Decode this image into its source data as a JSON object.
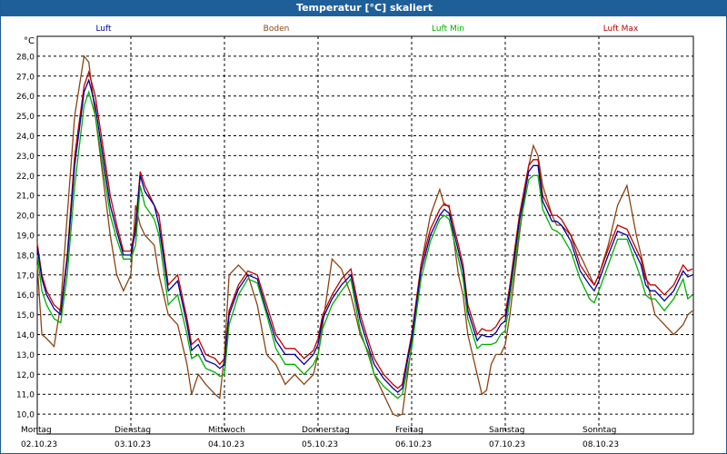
{
  "window": {
    "title": "Temperatur [°C] skaliert"
  },
  "chart_data": {
    "type": "line",
    "title": "Temperatur [°C] skaliert",
    "ylabel": "°C",
    "ylim": [
      9.0,
      29.0
    ],
    "yticks": [
      "10,0",
      "11,0",
      "12,0",
      "13,0",
      "14,0",
      "15,0",
      "16,0",
      "17,0",
      "18,0",
      "19,0",
      "20,0",
      "21,0",
      "22,0",
      "23,0",
      "24,0",
      "25,0",
      "26,0",
      "27,0",
      "28,0"
    ],
    "xlim": [
      0,
      7
    ],
    "days": [
      {
        "name": "Montag",
        "date": "02.10.23"
      },
      {
        "name": "Dienstag",
        "date": "03.10.23"
      },
      {
        "name": "Mittwoch",
        "date": "04.10.23"
      },
      {
        "name": "Donnerstag",
        "date": "05.10.23"
      },
      {
        "name": "Freitag",
        "date": "06.10.23"
      },
      {
        "name": "Samstag",
        "date": "07.10.23"
      },
      {
        "name": "Sonntag",
        "date": "08.10.23"
      }
    ],
    "grid": true,
    "series": [
      {
        "name": "Boden",
        "color": "#8B4513",
        "x": [
          0,
          0.05,
          0.1,
          0.18,
          0.25,
          0.32,
          0.4,
          0.5,
          0.55,
          0.62,
          0.7,
          0.78,
          0.85,
          0.92,
          1.0,
          1.05,
          1.1,
          1.15,
          1.25,
          1.3,
          1.4,
          1.5,
          1.6,
          1.65,
          1.72,
          1.8,
          1.9,
          1.95,
          2.0,
          2.05,
          2.15,
          2.25,
          2.35,
          2.45,
          2.55,
          2.65,
          2.75,
          2.85,
          2.95,
          3.0,
          3.05,
          3.15,
          3.25,
          3.35,
          3.45,
          3.55,
          3.6,
          3.7,
          3.8,
          3.85,
          3.9,
          4.0,
          4.1,
          4.2,
          4.3,
          4.35,
          4.4,
          4.5,
          4.55,
          4.6,
          4.7,
          4.75,
          4.8,
          4.85,
          4.9,
          4.95,
          5.0,
          5.05,
          5.15,
          5.25,
          5.3,
          5.35,
          5.4,
          5.5,
          5.55,
          5.6,
          5.7,
          5.8,
          5.9,
          5.95,
          6.0,
          6.1,
          6.2,
          6.3,
          6.4,
          6.45,
          6.5,
          6.55,
          6.6,
          6.7,
          6.8,
          6.9,
          6.95,
          7.0
        ],
        "y": [
          17.5,
          14.0,
          13.8,
          13.4,
          15.5,
          20.0,
          25.0,
          28.0,
          27.7,
          25.0,
          22.0,
          19.0,
          17.0,
          16.2,
          17.0,
          20.5,
          19.5,
          19.0,
          18.5,
          17.0,
          15.0,
          14.5,
          12.5,
          11.0,
          12.0,
          11.5,
          11.0,
          10.8,
          13.0,
          17.0,
          17.5,
          17.0,
          15.5,
          13.0,
          12.5,
          11.5,
          12.0,
          11.5,
          12.0,
          13.0,
          14.5,
          17.8,
          17.3,
          16.0,
          14.0,
          13.0,
          12.0,
          11.0,
          10.0,
          9.9,
          10.0,
          13.5,
          17.5,
          20.0,
          21.3,
          20.5,
          20.5,
          17.0,
          16.0,
          14.0,
          12.0,
          11.0,
          11.2,
          12.5,
          13.0,
          13.0,
          13.5,
          15.0,
          19.0,
          22.5,
          23.5,
          23.0,
          21.5,
          20.0,
          19.5,
          19.5,
          19.0,
          18.0,
          17.0,
          16.5,
          17.0,
          18.5,
          20.5,
          21.5,
          19.0,
          18.0,
          17.0,
          16.0,
          15.0,
          14.5,
          14.0,
          14.5,
          15.0,
          15.2
        ]
      },
      {
        "name": "Luft Max",
        "color": "#c00000",
        "x": [
          0,
          0.05,
          0.1,
          0.18,
          0.25,
          0.32,
          0.4,
          0.5,
          0.55,
          0.62,
          0.7,
          0.78,
          0.85,
          0.92,
          1.0,
          1.05,
          1.1,
          1.15,
          1.25,
          1.3,
          1.4,
          1.5,
          1.6,
          1.65,
          1.72,
          1.8,
          1.9,
          1.95,
          2.0,
          2.05,
          2.15,
          2.25,
          2.35,
          2.45,
          2.55,
          2.65,
          2.75,
          2.85,
          2.95,
          3.0,
          3.05,
          3.15,
          3.25,
          3.35,
          3.45,
          3.55,
          3.6,
          3.7,
          3.8,
          3.85,
          3.9,
          4.0,
          4.1,
          4.2,
          4.3,
          4.35,
          4.4,
          4.5,
          4.55,
          4.6,
          4.7,
          4.75,
          4.8,
          4.85,
          4.9,
          4.95,
          5.0,
          5.05,
          5.15,
          5.25,
          5.3,
          5.35,
          5.4,
          5.5,
          5.55,
          5.6,
          5.7,
          5.8,
          5.9,
          5.95,
          6.0,
          6.1,
          6.2,
          6.3,
          6.4,
          6.45,
          6.5,
          6.55,
          6.6,
          6.7,
          6.8,
          6.9,
          6.95,
          7.0
        ],
        "y": [
          18.6,
          17.0,
          16.2,
          15.5,
          15.2,
          18.0,
          23.0,
          26.5,
          27.2,
          26.0,
          23.5,
          21.0,
          19.5,
          18.2,
          18.2,
          19.5,
          22.2,
          21.5,
          20.5,
          20.0,
          16.5,
          17.0,
          14.8,
          13.5,
          13.8,
          13.0,
          12.8,
          12.5,
          12.8,
          15.2,
          16.5,
          17.2,
          17.0,
          15.5,
          14.0,
          13.3,
          13.3,
          12.8,
          13.2,
          13.8,
          15.0,
          16.0,
          16.8,
          17.3,
          15.0,
          13.5,
          12.8,
          12.0,
          11.5,
          11.3,
          11.5,
          14.0,
          17.5,
          19.3,
          20.3,
          20.6,
          20.4,
          18.5,
          17.5,
          15.5,
          14.0,
          14.3,
          14.2,
          14.2,
          14.4,
          14.8,
          15.0,
          16.5,
          20.0,
          22.5,
          22.8,
          22.8,
          21.0,
          20.0,
          20.0,
          19.8,
          19.0,
          17.5,
          16.8,
          16.5,
          17.0,
          18.3,
          19.5,
          19.3,
          18.3,
          17.8,
          16.8,
          16.5,
          16.5,
          16.0,
          16.5,
          17.5,
          17.2,
          17.3
        ]
      },
      {
        "name": "Luft",
        "color": "#0000a0",
        "x": [
          0,
          0.05,
          0.1,
          0.18,
          0.25,
          0.32,
          0.4,
          0.5,
          0.55,
          0.62,
          0.7,
          0.78,
          0.85,
          0.92,
          1.0,
          1.05,
          1.1,
          1.15,
          1.25,
          1.3,
          1.4,
          1.5,
          1.6,
          1.65,
          1.72,
          1.8,
          1.9,
          1.95,
          2.0,
          2.05,
          2.15,
          2.25,
          2.35,
          2.45,
          2.55,
          2.65,
          2.75,
          2.85,
          2.95,
          3.0,
          3.05,
          3.15,
          3.25,
          3.35,
          3.45,
          3.55,
          3.6,
          3.7,
          3.8,
          3.85,
          3.9,
          4.0,
          4.1,
          4.2,
          4.3,
          4.35,
          4.4,
          4.5,
          4.55,
          4.6,
          4.7,
          4.75,
          4.8,
          4.85,
          4.9,
          4.95,
          5.0,
          5.05,
          5.15,
          5.25,
          5.3,
          5.35,
          5.4,
          5.5,
          5.55,
          5.6,
          5.7,
          5.8,
          5.9,
          5.95,
          6.0,
          6.1,
          6.2,
          6.3,
          6.4,
          6.45,
          6.5,
          6.55,
          6.6,
          6.7,
          6.8,
          6.9,
          6.95,
          7.0
        ],
        "y": [
          18.4,
          16.8,
          16.0,
          15.3,
          15.0,
          17.8,
          22.5,
          26.2,
          26.8,
          25.5,
          23.0,
          20.5,
          19.2,
          18.0,
          18.0,
          19.2,
          22.0,
          21.2,
          20.5,
          19.5,
          16.2,
          16.7,
          14.5,
          13.2,
          13.5,
          12.7,
          12.5,
          12.3,
          12.5,
          15.0,
          16.3,
          17.0,
          16.8,
          15.2,
          13.7,
          13.0,
          13.0,
          12.5,
          13.0,
          13.5,
          14.8,
          15.8,
          16.5,
          17.0,
          14.7,
          13.2,
          12.5,
          11.8,
          11.3,
          11.1,
          11.3,
          13.8,
          17.2,
          19.0,
          20.0,
          20.3,
          20.1,
          18.2,
          17.2,
          15.2,
          13.7,
          14.0,
          13.9,
          13.9,
          14.1,
          14.5,
          14.7,
          16.2,
          19.7,
          22.2,
          22.5,
          22.5,
          20.7,
          19.7,
          19.7,
          19.5,
          18.7,
          17.2,
          16.5,
          16.2,
          16.7,
          18.0,
          19.2,
          19.0,
          18.0,
          17.5,
          16.5,
          16.2,
          16.2,
          15.7,
          16.2,
          17.2,
          16.9,
          17.0
        ]
      },
      {
        "name": "Luft Min",
        "color": "#00b000",
        "x": [
          0,
          0.05,
          0.1,
          0.18,
          0.25,
          0.32,
          0.4,
          0.5,
          0.55,
          0.62,
          0.7,
          0.78,
          0.85,
          0.92,
          1.0,
          1.05,
          1.1,
          1.15,
          1.25,
          1.3,
          1.4,
          1.5,
          1.6,
          1.65,
          1.72,
          1.8,
          1.9,
          1.95,
          2.0,
          2.05,
          2.15,
          2.25,
          2.35,
          2.45,
          2.55,
          2.65,
          2.75,
          2.85,
          2.95,
          3.0,
          3.05,
          3.15,
          3.25,
          3.35,
          3.45,
          3.55,
          3.6,
          3.7,
          3.8,
          3.85,
          3.9,
          4.0,
          4.1,
          4.2,
          4.3,
          4.35,
          4.4,
          4.5,
          4.55,
          4.6,
          4.7,
          4.75,
          4.8,
          4.85,
          4.9,
          4.95,
          5.0,
          5.05,
          5.15,
          5.25,
          5.3,
          5.35,
          5.4,
          5.5,
          5.55,
          5.6,
          5.7,
          5.8,
          5.9,
          5.95,
          6.0,
          6.1,
          6.2,
          6.3,
          6.4,
          6.45,
          6.5,
          6.55,
          6.6,
          6.7,
          6.8,
          6.9,
          6.95,
          7.0
        ],
        "y": [
          18.0,
          16.2,
          15.5,
          14.8,
          14.6,
          17.0,
          21.5,
          25.5,
          26.2,
          25.0,
          22.5,
          20.0,
          18.8,
          17.8,
          17.8,
          18.5,
          21.5,
          20.5,
          19.8,
          19.0,
          15.5,
          16.0,
          14.0,
          12.8,
          13.0,
          12.3,
          12.1,
          11.9,
          12.0,
          14.5,
          16.0,
          16.8,
          16.6,
          15.0,
          13.3,
          12.5,
          12.5,
          12.0,
          12.5,
          13.0,
          14.3,
          15.5,
          16.2,
          16.8,
          14.2,
          12.8,
          12.0,
          11.4,
          11.0,
          10.8,
          11.0,
          13.3,
          16.8,
          18.7,
          19.8,
          20.0,
          19.8,
          17.8,
          16.8,
          14.8,
          13.3,
          13.5,
          13.5,
          13.5,
          13.6,
          14.0,
          14.2,
          15.8,
          19.3,
          21.8,
          22.0,
          22.0,
          20.3,
          19.3,
          19.2,
          19.0,
          18.2,
          16.8,
          15.8,
          15.6,
          16.2,
          17.5,
          18.8,
          18.8,
          17.5,
          16.8,
          16.0,
          15.8,
          15.8,
          15.2,
          15.8,
          16.8,
          15.8,
          16.0
        ]
      }
    ]
  }
}
